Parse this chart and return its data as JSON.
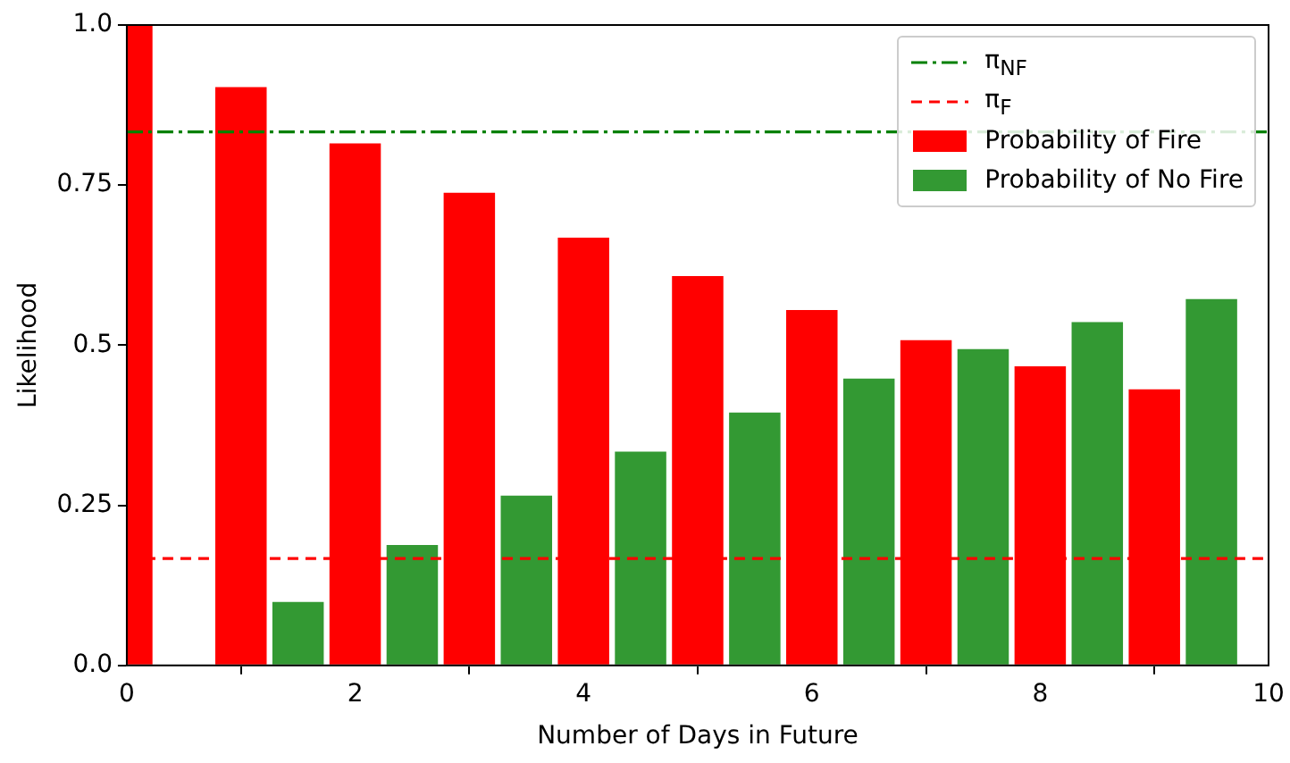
{
  "chart_data": {
    "type": "bar",
    "xlabel": "Number of Days in Future",
    "ylabel": "Likelihood",
    "xlim": [
      0,
      10
    ],
    "xticks": [
      0,
      2,
      4,
      6,
      8,
      10
    ],
    "ylim": [
      0,
      1
    ],
    "yticks": [
      {
        "value": 0,
        "label": "0.0"
      },
      0.25,
      0.5,
      0.75,
      {
        "value": 1,
        "label": "1.0"
      }
    ],
    "series": [
      {
        "name": "Probability of Fire",
        "color": "#ff0000",
        "x": [
          0,
          1,
          2,
          3,
          4,
          5,
          6,
          7,
          8,
          9
        ],
        "values": [
          1.0,
          0.903,
          0.815,
          0.738,
          0.668,
          0.608,
          0.555,
          0.508,
          0.467,
          0.431
        ]
      },
      {
        "name": "Probability of No Fire",
        "color": "#339933",
        "x": [
          0.5,
          1.5,
          2.5,
          3.5,
          4.5,
          5.5,
          6.5,
          7.5,
          8.5,
          9.5
        ],
        "values": [
          0,
          0.099,
          0.188,
          0.265,
          0.334,
          0.395,
          0.448,
          0.494,
          0.536,
          0.572
        ]
      }
    ],
    "ref_lines": [
      {
        "axis": "y",
        "value": 0.833,
        "label": "π$_{NF}$",
        "color": "#008000",
        "line_style": "dashdot"
      },
      {
        "axis": "y",
        "value": 0.167,
        "label": "π$_{F}$",
        "color": "#ff0000",
        "line_style": "dashed"
      }
    ],
    "grid": false,
    "legend": "top right"
  }
}
